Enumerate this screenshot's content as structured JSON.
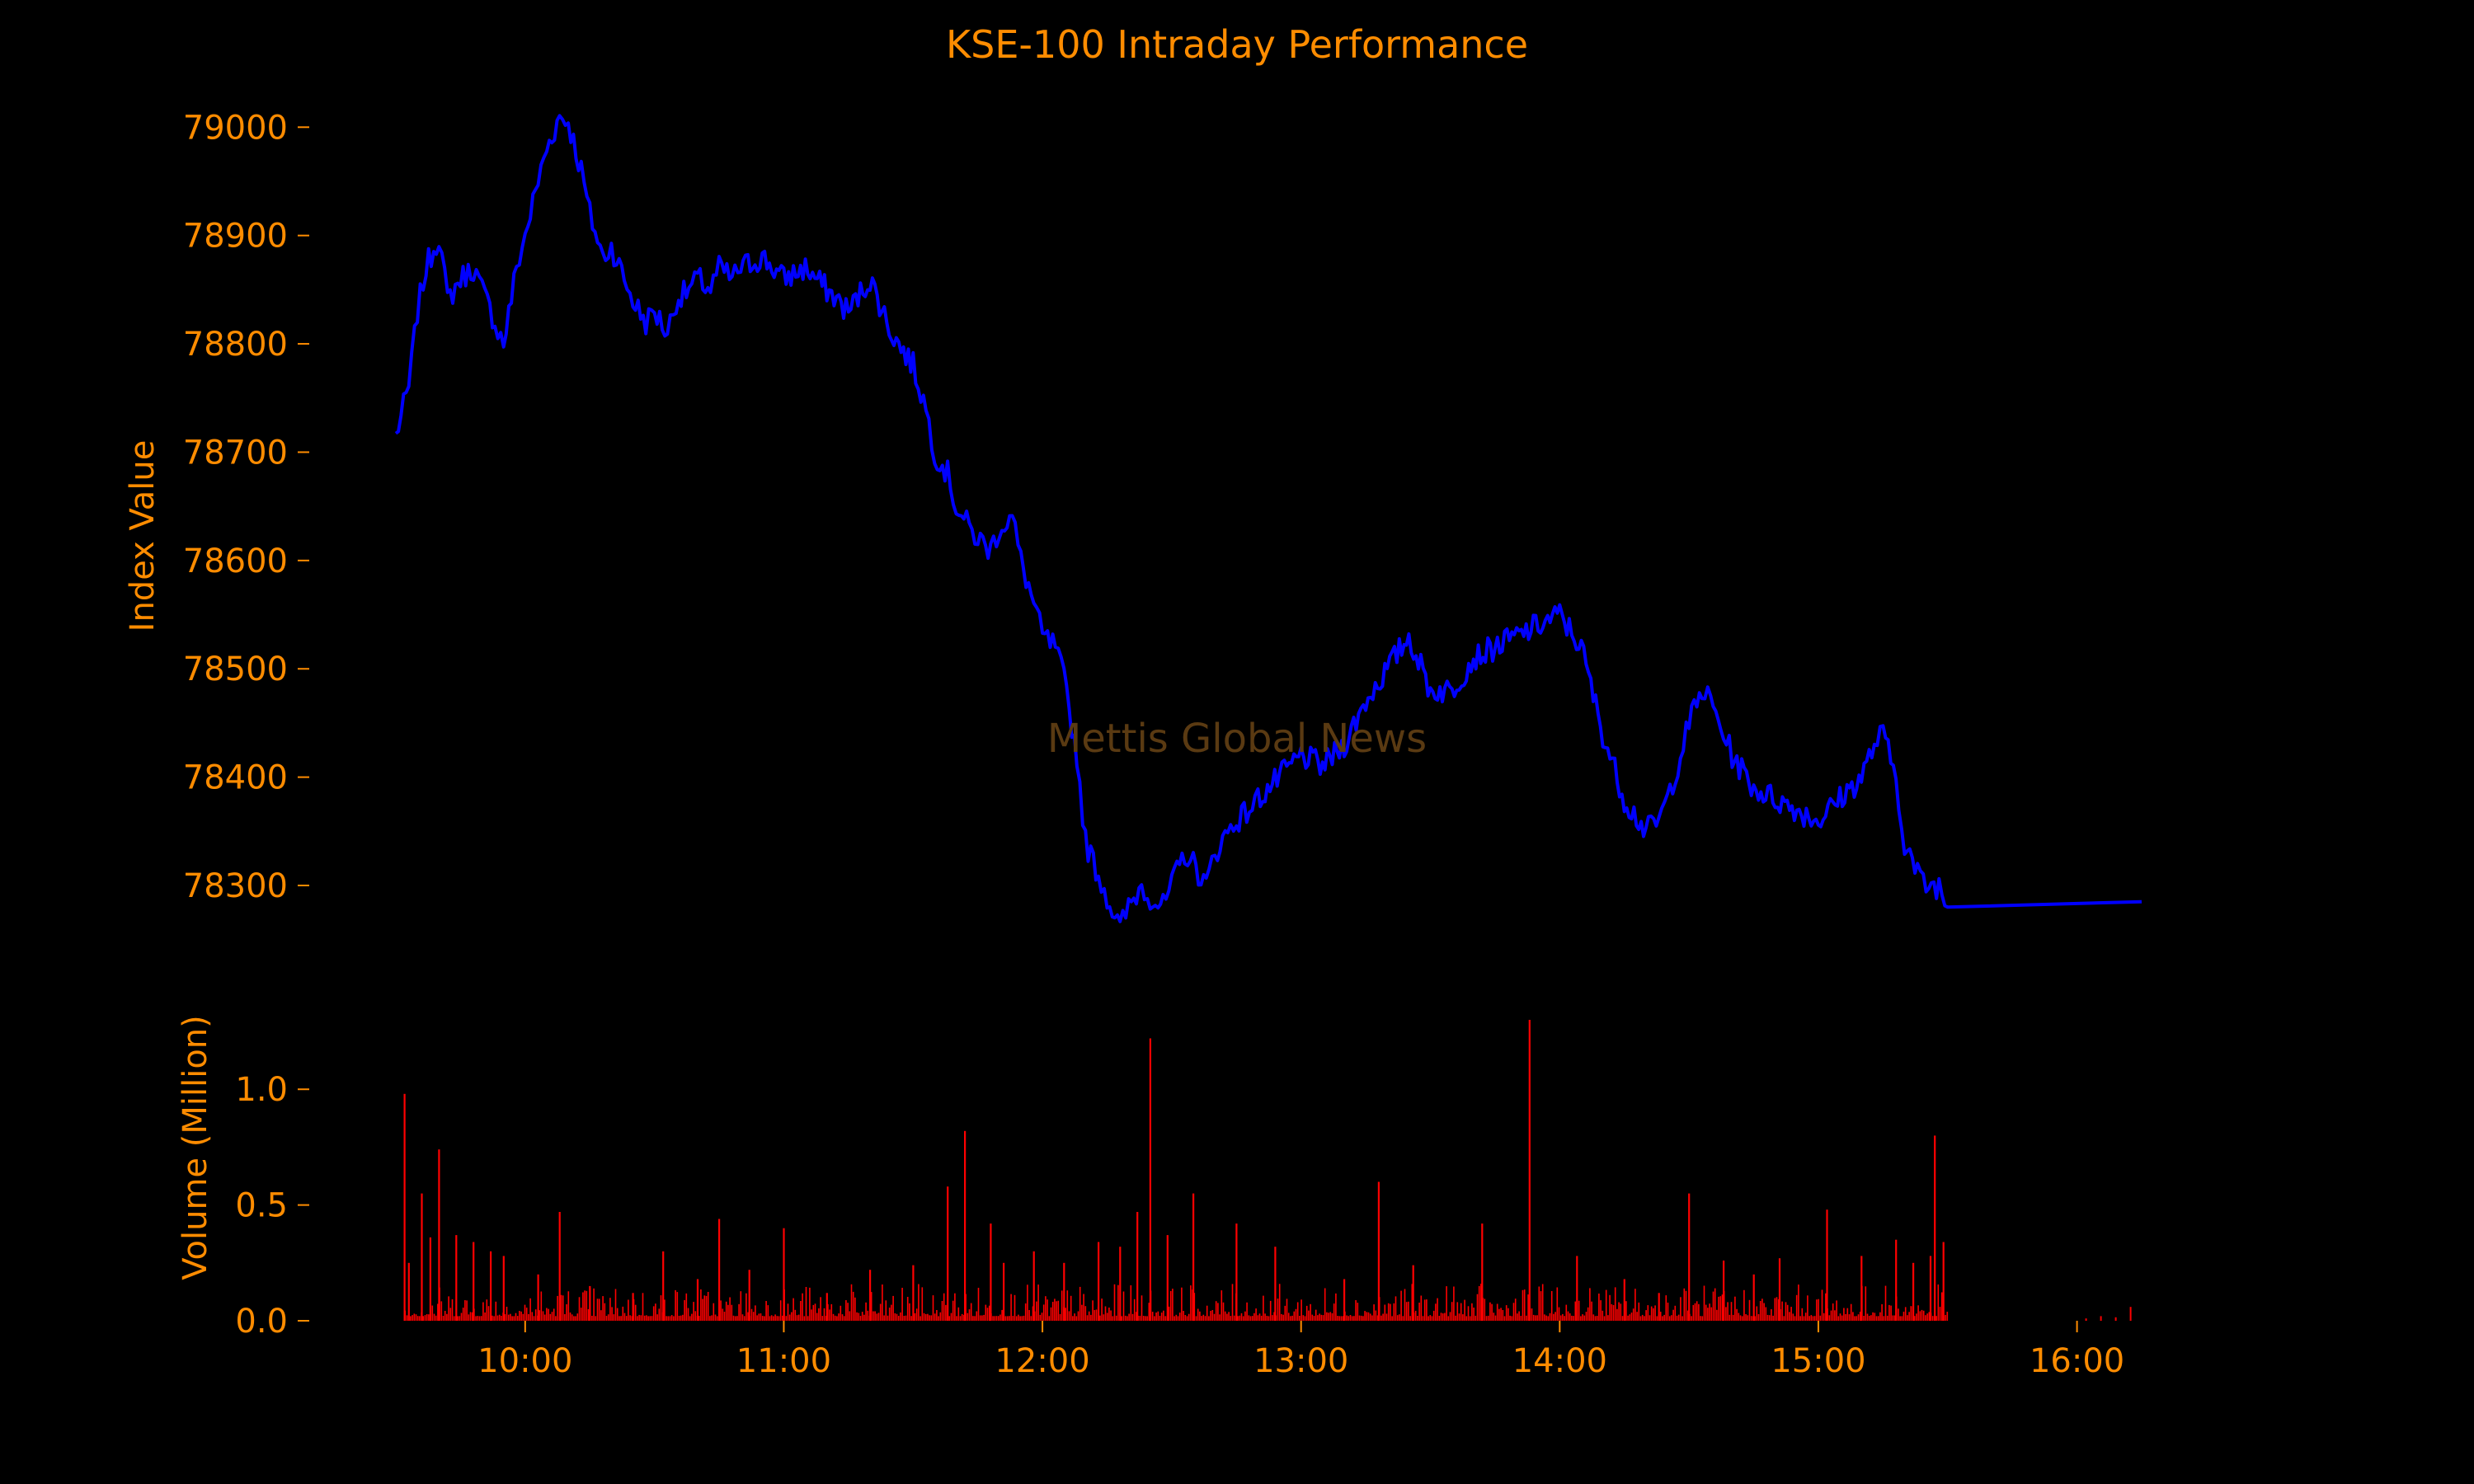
{
  "chart_data": [
    {
      "type": "line",
      "title": "KSE-100 Intraday Performance",
      "xlabel": "",
      "ylabel": "Index Value",
      "xlim": [
        "09:30",
        "16:15"
      ],
      "ylim": [
        78230,
        79020
      ],
      "yticks": [
        78300,
        78400,
        78500,
        78600,
        78700,
        78800,
        78900,
        79000
      ],
      "grid": false,
      "line_color": "#0000ff",
      "text_color": "#ff8c00",
      "background": "#000000",
      "series": [
        {
          "x": [
            "09:30",
            "09:33",
            "09:35",
            "09:37",
            "09:40",
            "09:42",
            "09:45",
            "09:48",
            "09:50",
            "09:53",
            "09:55",
            "09:58",
            "10:00",
            "10:03",
            "10:05",
            "10:08",
            "10:10",
            "10:13",
            "10:15",
            "10:18",
            "10:20",
            "10:23",
            "10:25",
            "10:28",
            "10:30",
            "10:33",
            "10:35",
            "10:38",
            "10:40",
            "10:43",
            "10:45",
            "10:48",
            "10:50",
            "10:55",
            "11:00",
            "11:05",
            "11:10",
            "11:15",
            "11:20",
            "11:25",
            "11:30",
            "11:33",
            "11:35",
            "11:38",
            "11:40",
            "11:43",
            "11:45",
            "11:48",
            "11:50",
            "11:53",
            "11:55",
            "11:58",
            "12:00",
            "12:03",
            "12:05",
            "12:08",
            "12:10",
            "12:13",
            "12:15",
            "12:18",
            "12:20",
            "12:23",
            "12:25",
            "12:28",
            "12:30",
            "12:33",
            "12:35",
            "12:38",
            "12:40",
            "12:43",
            "12:45",
            "12:48",
            "12:50",
            "12:55",
            "13:00",
            "13:05",
            "13:10",
            "13:15",
            "13:20",
            "13:25",
            "13:30",
            "13:35",
            "13:40",
            "13:45",
            "13:50",
            "13:55",
            "14:00",
            "14:05",
            "14:10",
            "14:15",
            "14:20",
            "14:23",
            "14:25",
            "14:28",
            "14:30",
            "14:33",
            "14:35",
            "14:38",
            "14:40",
            "14:45",
            "14:50",
            "14:55",
            "15:00",
            "15:05",
            "15:10",
            "15:13",
            "15:15",
            "15:18",
            "15:20",
            "15:23",
            "15:25",
            "15:28",
            "15:30",
            "16:15"
          ],
          "y": [
            78715,
            78760,
            78830,
            78870,
            78900,
            78840,
            78860,
            78870,
            78850,
            78820,
            78800,
            78870,
            78900,
            78950,
            78980,
            79010,
            79005,
            78960,
            78920,
            78880,
            78890,
            78860,
            78840,
            78820,
            78830,
            78810,
            78840,
            78850,
            78860,
            78850,
            78870,
            78860,
            78870,
            78880,
            78860,
            78870,
            78850,
            78830,
            78860,
            78810,
            78780,
            78740,
            78700,
            78680,
            78650,
            78630,
            78620,
            78610,
            78630,
            78640,
            78600,
            78560,
            78530,
            78520,
            78490,
            78420,
            78340,
            78310,
            78290,
            78260,
            78280,
            78300,
            78290,
            78280,
            78300,
            78330,
            78320,
            78300,
            78330,
            78350,
            78360,
            78370,
            78380,
            78400,
            78420,
            78410,
            78430,
            78470,
            78500,
            78530,
            78480,
            78480,
            78510,
            78520,
            78530,
            78540,
            78550,
            78520,
            78440,
            78380,
            78350,
            78360,
            78380,
            78420,
            78450,
            78480,
            78470,
            78440,
            78420,
            78390,
            78380,
            78370,
            78360,
            78380,
            78400,
            78430,
            78440,
            78400,
            78340,
            78310,
            78300,
            78300,
            78280,
            78285
          ]
        }
      ]
    },
    {
      "type": "bar",
      "xlabel": "",
      "ylabel": "Volume (Million)",
      "ylim": [
        0,
        1.3
      ],
      "yticks": [
        "0.0",
        "0.5",
        "1.0"
      ],
      "xticks": [
        "10:00",
        "11:00",
        "12:00",
        "13:00",
        "14:00",
        "15:00",
        "16:00"
      ],
      "bar_color": "#ff0000",
      "series": [
        {
          "x": [
            "09:32",
            "09:33",
            "09:36",
            "09:38",
            "09:40",
            "09:44",
            "09:48",
            "09:52",
            "09:55",
            "10:03",
            "10:08",
            "10:15",
            "10:25",
            "10:32",
            "10:40",
            "10:45",
            "10:52",
            "11:00",
            "11:10",
            "11:20",
            "11:30",
            "11:38",
            "11:42",
            "11:48",
            "11:51",
            "11:58",
            "12:05",
            "12:13",
            "12:18",
            "12:22",
            "12:25",
            "12:29",
            "12:35",
            "12:45",
            "12:54",
            "13:10",
            "13:18",
            "13:26",
            "13:42",
            "13:53",
            "14:04",
            "14:15",
            "14:23",
            "14:30",
            "14:38",
            "14:45",
            "14:51",
            "15:02",
            "15:10",
            "15:18",
            "15:22",
            "15:26",
            "15:27",
            "15:29"
          ],
          "values": [
            0.98,
            0.25,
            0.55,
            0.36,
            0.74,
            0.37,
            0.34,
            0.3,
            0.28,
            0.2,
            0.47,
            0.15,
            0.12,
            0.3,
            0.18,
            0.44,
            0.22,
            0.4,
            0.12,
            0.22,
            0.24,
            0.58,
            0.82,
            0.42,
            0.25,
            0.3,
            0.25,
            0.34,
            0.32,
            0.47,
            1.22,
            0.37,
            0.55,
            0.42,
            0.32,
            0.18,
            0.6,
            0.24,
            0.42,
            1.3,
            0.28,
            0.18,
            0.12,
            0.55,
            0.26,
            0.2,
            0.27,
            0.48,
            0.28,
            0.35,
            0.25,
            0.28,
            0.8,
            0.34
          ]
        }
      ]
    }
  ],
  "watermark": "Mettis Global News"
}
